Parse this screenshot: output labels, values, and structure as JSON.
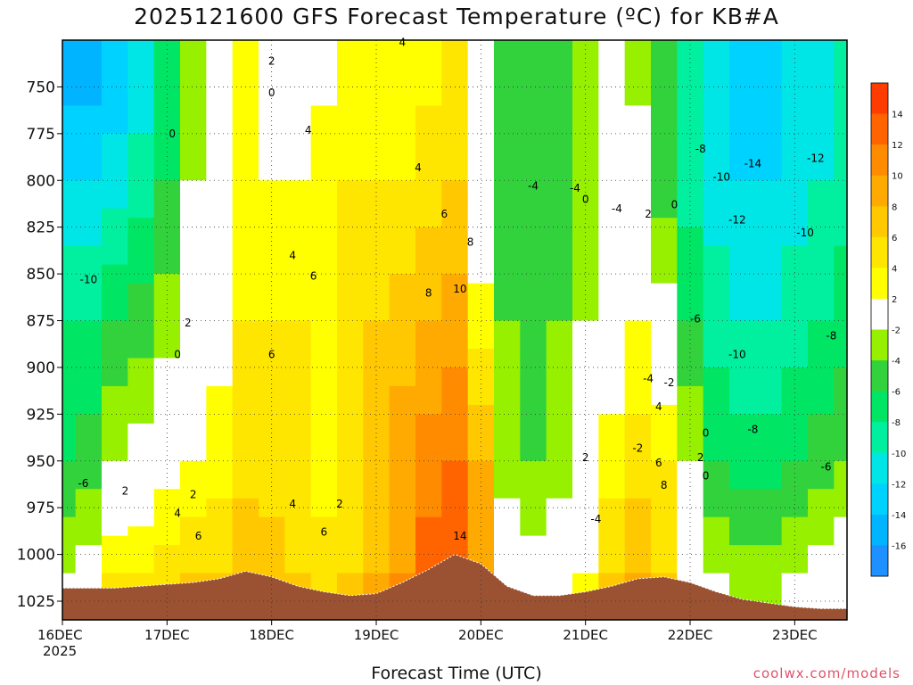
{
  "chart_data": {
    "type": "heatmap",
    "title": "2025121600 GFS Forecast Temperature (ºC) for KB#A",
    "xlabel": "Forecast Time (UTC)",
    "ylabel": "",
    "x_ticks": [
      "16DEC",
      "17DEC",
      "18DEC",
      "19DEC",
      "20DEC",
      "21DEC",
      "22DEC",
      "23DEC"
    ],
    "x_year": "2025",
    "xlim": [
      0,
      7.5
    ],
    "y_ticks": [
      750,
      775,
      800,
      825,
      850,
      875,
      900,
      925,
      950,
      975,
      1000,
      1025
    ],
    "ylim": [
      1035,
      725
    ],
    "grid": true,
    "colorbar": {
      "levels": [
        -16,
        -14,
        -12,
        -10,
        -8,
        -6,
        -4,
        -2,
        2,
        4,
        6,
        8,
        10,
        12,
        14
      ],
      "labels": [
        "-16",
        "-14",
        "-12",
        "-10",
        "-8",
        "-6",
        "-4",
        "-2",
        "2",
        "4",
        "6",
        "8",
        "10",
        "12",
        "14"
      ],
      "colors": [
        "#1e90ff",
        "#00b4ff",
        "#00d2ff",
        "#00e6e6",
        "#00f0a0",
        "#00e664",
        "#32d23c",
        "#96f000",
        "#ffffff",
        "#ffff00",
        "#ffe600",
        "#ffc800",
        "#ffaa00",
        "#ff8c00",
        "#ff6400",
        "#ff3c00"
      ]
    },
    "contour_labels": [
      "0",
      "2",
      "4",
      "4",
      "0",
      "-10",
      "2",
      "0",
      "6",
      "4",
      "4",
      "6",
      "6",
      "8",
      "10",
      "8",
      "14",
      "-4",
      "-4",
      "-4",
      "0",
      "2",
      "0",
      "-10",
      "-8",
      "-12",
      "-14",
      "-12",
      "-10",
      "-4",
      "-2",
      "-6",
      "-10",
      "-8",
      "4",
      "6",
      "8",
      "2",
      "0",
      "2",
      "-8",
      "-6",
      "-4",
      "2",
      "4",
      "6",
      "4",
      "6",
      "2",
      "-6",
      "2",
      "-2",
      "0"
    ],
    "columns": [
      {
        "x": 0.0,
        "profile": [
          [
            725,
            -16
          ],
          [
            800,
            -12
          ],
          [
            875,
            -8
          ],
          [
            950,
            -6
          ],
          [
            1010,
            -2
          ]
        ],
        "surface": 1018
      },
      {
        "x": 0.25,
        "profile": [
          [
            725,
            -16
          ],
          [
            800,
            -12
          ],
          [
            875,
            -8
          ],
          [
            950,
            -5
          ],
          [
            1010,
            -1
          ]
        ],
        "surface": 1018
      },
      {
        "x": 0.5,
        "profile": [
          [
            725,
            -14
          ],
          [
            800,
            -11
          ],
          [
            875,
            -6
          ],
          [
            950,
            -2
          ],
          [
            1010,
            4
          ]
        ],
        "surface": 1018
      },
      {
        "x": 0.75,
        "profile": [
          [
            725,
            -12
          ],
          [
            800,
            -9
          ],
          [
            875,
            -5
          ],
          [
            950,
            -1
          ],
          [
            1010,
            4
          ]
        ],
        "surface": 1017
      },
      {
        "x": 1.0,
        "profile": [
          [
            725,
            -8
          ],
          [
            800,
            -6
          ],
          [
            875,
            -3
          ],
          [
            950,
            1
          ],
          [
            1010,
            5
          ]
        ],
        "surface": 1016
      },
      {
        "x": 1.25,
        "profile": [
          [
            725,
            -3
          ],
          [
            800,
            -2
          ],
          [
            875,
            0
          ],
          [
            950,
            2
          ],
          [
            1010,
            6
          ]
        ],
        "surface": 1015
      },
      {
        "x": 1.5,
        "profile": [
          [
            725,
            0
          ],
          [
            800,
            1
          ],
          [
            875,
            1
          ],
          [
            950,
            3
          ],
          [
            1010,
            6
          ]
        ],
        "surface": 1013
      },
      {
        "x": 1.75,
        "profile": [
          [
            725,
            2
          ],
          [
            800,
            3
          ],
          [
            875,
            4
          ],
          [
            950,
            5
          ],
          [
            1010,
            8
          ]
        ],
        "surface": 1009
      },
      {
        "x": 2.0,
        "profile": [
          [
            725,
            1
          ],
          [
            800,
            2
          ],
          [
            875,
            4
          ],
          [
            950,
            5
          ],
          [
            1010,
            7
          ]
        ],
        "surface": 1012
      },
      {
        "x": 2.25,
        "profile": [
          [
            725,
            0
          ],
          [
            800,
            2
          ],
          [
            875,
            4
          ],
          [
            950,
            4
          ],
          [
            1010,
            6
          ]
        ],
        "surface": 1017
      },
      {
        "x": 2.5,
        "profile": [
          [
            725,
            1
          ],
          [
            800,
            3
          ],
          [
            875,
            4
          ],
          [
            950,
            3
          ],
          [
            1010,
            5
          ]
        ],
        "surface": 1020
      },
      {
        "x": 2.75,
        "profile": [
          [
            725,
            2
          ],
          [
            800,
            4
          ],
          [
            875,
            5
          ],
          [
            950,
            5
          ],
          [
            1010,
            6
          ]
        ],
        "surface": 1022
      },
      {
        "x": 3.0,
        "profile": [
          [
            725,
            2
          ],
          [
            800,
            4
          ],
          [
            875,
            6
          ],
          [
            950,
            7
          ],
          [
            1010,
            8
          ]
        ],
        "surface": 1021
      },
      {
        "x": 3.25,
        "profile": [
          [
            725,
            2
          ],
          [
            800,
            4
          ],
          [
            875,
            7
          ],
          [
            950,
            9
          ],
          [
            1010,
            10
          ]
        ],
        "surface": 1015
      },
      {
        "x": 3.5,
        "profile": [
          [
            725,
            3
          ],
          [
            800,
            5
          ],
          [
            875,
            8
          ],
          [
            950,
            11
          ],
          [
            1010,
            13
          ]
        ],
        "surface": 1008
      },
      {
        "x": 3.75,
        "profile": [
          [
            725,
            4
          ],
          [
            800,
            6
          ],
          [
            875,
            9
          ],
          [
            950,
            12
          ],
          [
            1010,
            14
          ]
        ],
        "surface": 1000
      },
      {
        "x": 4.0,
        "profile": [
          [
            725,
            -2
          ],
          [
            800,
            -1
          ],
          [
            875,
            3
          ],
          [
            950,
            8
          ],
          [
            1010,
            10
          ]
        ],
        "surface": 1005
      },
      {
        "x": 4.25,
        "profile": [
          [
            725,
            -6
          ],
          [
            800,
            -5
          ],
          [
            875,
            -4
          ],
          [
            950,
            -3
          ],
          [
            1010,
            0
          ]
        ],
        "surface": 1017
      },
      {
        "x": 4.5,
        "profile": [
          [
            725,
            -6
          ],
          [
            800,
            -6
          ],
          [
            875,
            -5
          ],
          [
            950,
            -4
          ],
          [
            1010,
            -1
          ]
        ],
        "surface": 1022
      },
      {
        "x": 4.75,
        "profile": [
          [
            725,
            -5
          ],
          [
            800,
            -5
          ],
          [
            875,
            -4
          ],
          [
            950,
            -3
          ],
          [
            1010,
            0
          ]
        ],
        "surface": 1022
      },
      {
        "x": 5.0,
        "profile": [
          [
            725,
            -4
          ],
          [
            800,
            -3
          ],
          [
            875,
            -2
          ],
          [
            950,
            -1
          ],
          [
            1010,
            2
          ]
        ],
        "surface": 1020
      },
      {
        "x": 5.25,
        "profile": [
          [
            725,
            -2
          ],
          [
            800,
            -1
          ],
          [
            875,
            0
          ],
          [
            950,
            3
          ],
          [
            1010,
            6
          ]
        ],
        "surface": 1017
      },
      {
        "x": 5.5,
        "profile": [
          [
            725,
            -3
          ],
          [
            800,
            -1
          ],
          [
            875,
            2
          ],
          [
            950,
            5
          ],
          [
            1010,
            8
          ]
        ],
        "surface": 1013
      },
      {
        "x": 5.75,
        "profile": [
          [
            725,
            -6
          ],
          [
            800,
            -5
          ],
          [
            875,
            -1
          ],
          [
            950,
            4
          ],
          [
            1010,
            6
          ]
        ],
        "surface": 1012
      },
      {
        "x": 6.0,
        "profile": [
          [
            725,
            -10
          ],
          [
            800,
            -9
          ],
          [
            875,
            -6
          ],
          [
            950,
            -2
          ],
          [
            1010,
            1
          ]
        ],
        "surface": 1015
      },
      {
        "x": 6.25,
        "profile": [
          [
            725,
            -12
          ],
          [
            800,
            -11
          ],
          [
            875,
            -9
          ],
          [
            950,
            -6
          ],
          [
            1010,
            -2
          ]
        ],
        "surface": 1020
      },
      {
        "x": 6.5,
        "profile": [
          [
            725,
            -14
          ],
          [
            800,
            -12
          ],
          [
            875,
            -10
          ],
          [
            950,
            -7
          ],
          [
            1010,
            -3
          ]
        ],
        "surface": 1024
      },
      {
        "x": 6.75,
        "profile": [
          [
            725,
            -13
          ],
          [
            800,
            -12
          ],
          [
            875,
            -10
          ],
          [
            950,
            -7
          ],
          [
            1010,
            -3
          ]
        ],
        "surface": 1026
      },
      {
        "x": 7.0,
        "profile": [
          [
            725,
            -12
          ],
          [
            800,
            -11
          ],
          [
            875,
            -9
          ],
          [
            950,
            -6
          ],
          [
            1010,
            -2
          ]
        ],
        "surface": 1028
      },
      {
        "x": 7.25,
        "profile": [
          [
            725,
            -11
          ],
          [
            800,
            -10
          ],
          [
            875,
            -8
          ],
          [
            950,
            -5
          ],
          [
            1010,
            -1
          ]
        ],
        "surface": 1029
      },
      {
        "x": 7.5,
        "profile": [
          [
            725,
            -10
          ],
          [
            800,
            -9
          ],
          [
            875,
            -7
          ],
          [
            950,
            -4
          ],
          [
            1010,
            0
          ]
        ],
        "surface": 1029
      }
    ]
  },
  "credit": "coolwx.com/models"
}
